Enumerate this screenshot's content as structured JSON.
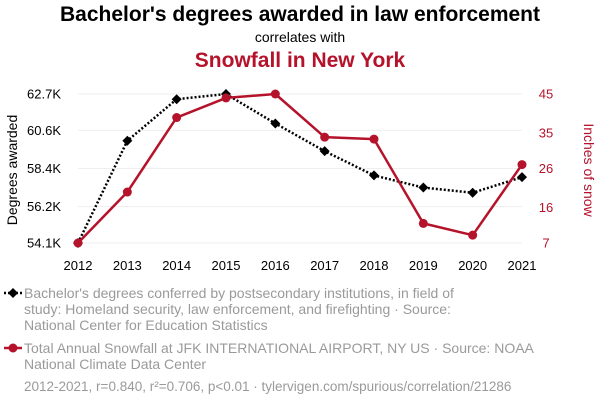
{
  "colors": {
    "series_left": "#000000",
    "series_right": "#b5132b",
    "grid": "#eeeeee",
    "muted": "#9a9a9a"
  },
  "header": {
    "title": "Bachelor's degrees awarded in law enforcement",
    "correlates": "correlates with",
    "title2": "Snowfall in New York"
  },
  "legend": {
    "series1_lines": [
      "Bachelor's degrees conferred by postsecondary institutions, in field of",
      "study: Homeland security, law enforcement, and firefighting · Source:",
      "National Center for Education Statistics"
    ],
    "series2_lines": [
      "Total Annual Snowfall at JFK INTERNATIONAL AIRPORT, NY US · Source: NOAA",
      "National Climate Data Center"
    ]
  },
  "footer": "2012-2021, r=0.840, r²=0.706, p<0.01 · tylervigen.com/spurious/correlation/21286",
  "chart_data": {
    "type": "line",
    "x": [
      2012,
      2013,
      2014,
      2015,
      2016,
      2017,
      2018,
      2019,
      2020,
      2021
    ],
    "series": [
      {
        "name": "Bachelor's degrees awarded in law enforcement",
        "axis": "left",
        "style": "dotted",
        "marker": "diamond",
        "values": [
          54100,
          60000,
          62400,
          62700,
          61000,
          59400,
          58000,
          57300,
          57000,
          57900
        ]
      },
      {
        "name": "Snowfall in New York",
        "axis": "right",
        "style": "solid",
        "marker": "circle",
        "values": [
          7,
          20,
          39,
          44,
          45,
          34,
          33.5,
          12,
          9,
          27
        ]
      }
    ],
    "yleft": {
      "label": "Degrees awarded",
      "lim": [
        54100,
        62700
      ],
      "ticks": [
        54100,
        56200,
        58400,
        60600,
        62700
      ],
      "tick_labels": [
        "54.1K",
        "56.2K",
        "58.4K",
        "60.6K",
        "62.7K"
      ]
    },
    "yright": {
      "label": "Inches of snow",
      "lim": [
        7,
        45
      ],
      "ticks": [
        7,
        16,
        26,
        35,
        45
      ],
      "tick_labels": [
        "7",
        "16",
        "26",
        "35",
        "45"
      ]
    },
    "xtick_labels": [
      "2012",
      "2013",
      "2014",
      "2015",
      "2016",
      "2017",
      "2018",
      "2019",
      "2020",
      "2021"
    ],
    "grid": true
  }
}
